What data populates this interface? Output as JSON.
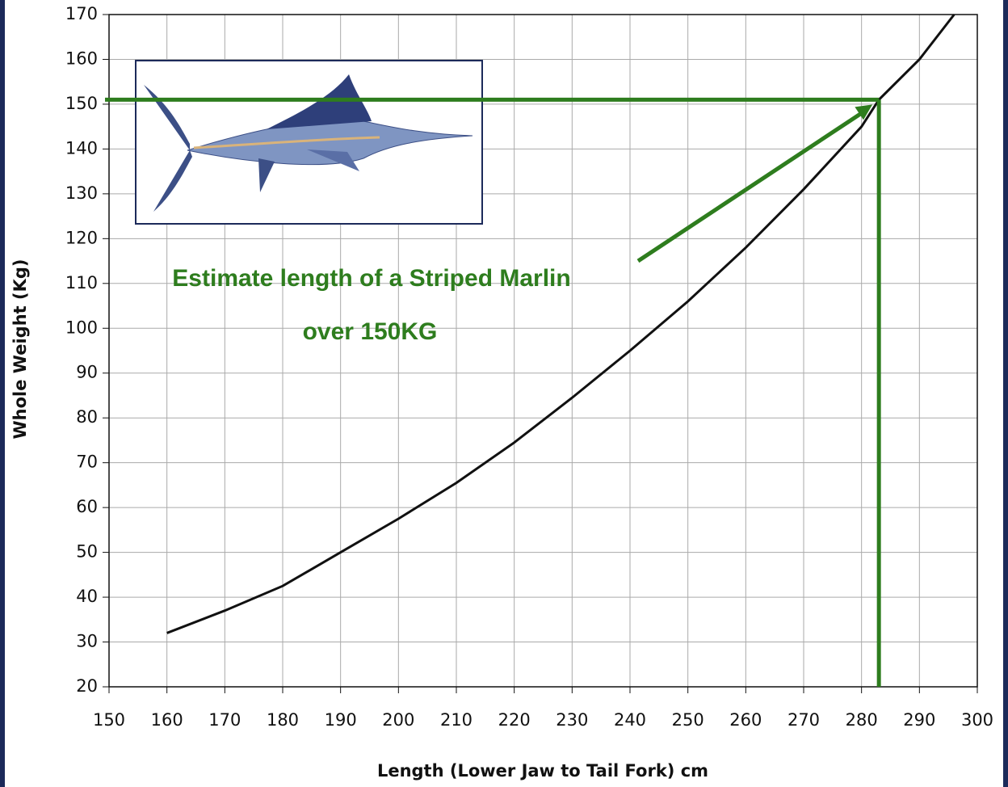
{
  "chart_data": {
    "type": "line",
    "x_label": "Length (Lower Jaw to Tail Fork) cm",
    "y_label": "Whole Weight (Kg)",
    "x": [
      160,
      170,
      180,
      190,
      200,
      210,
      220,
      230,
      240,
      250,
      260,
      270,
      280,
      283,
      290,
      296
    ],
    "values": [
      32,
      37,
      42.5,
      50,
      57.5,
      65.5,
      74.5,
      84.5,
      95,
      106,
      118,
      131,
      145,
      151,
      160,
      170
    ],
    "color": "#111111",
    "xlim": [
      150,
      300
    ],
    "ylim": [
      20,
      170
    ],
    "xticks": [
      150,
      160,
      170,
      180,
      190,
      200,
      210,
      220,
      230,
      240,
      250,
      260,
      270,
      280,
      290,
      300
    ],
    "yticks": [
      20,
      30,
      40,
      50,
      60,
      70,
      80,
      90,
      100,
      110,
      120,
      130,
      140,
      150,
      160,
      170
    ],
    "grid": true,
    "reference": {
      "x": 283,
      "y": 151,
      "color": "#2e7d1e"
    },
    "annotations": [
      "Estimate length of a Striped Marlin",
      "over 150KG"
    ]
  }
}
